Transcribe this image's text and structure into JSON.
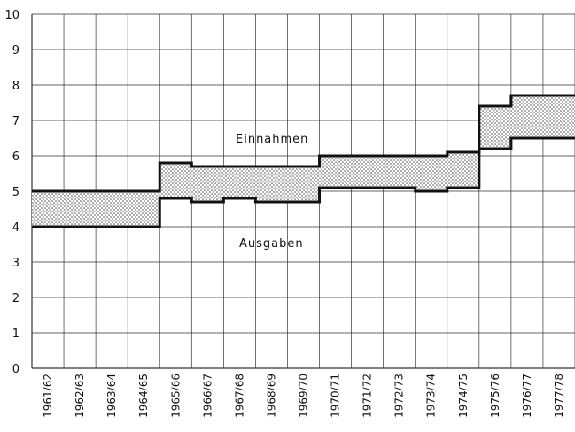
{
  "chart_data": {
    "type": "area",
    "title": "",
    "xlabel": "",
    "ylabel": "",
    "ylim": [
      0,
      10
    ],
    "yticks": [
      "0",
      "1",
      "2",
      "3",
      "4",
      "5",
      "6",
      "7",
      "8",
      "9",
      "10"
    ],
    "categories": [
      "1961/62",
      "1962/63",
      "1963/64",
      "1964/65",
      "1965/66",
      "1966/67",
      "1967/68",
      "1968/69",
      "1969/70",
      "1970/71",
      "1971/72",
      "1972/73",
      "1973/74",
      "1974/75",
      "1975/76",
      "1976/77",
      "1977/78"
    ],
    "series": [
      {
        "name": "Einnahmen",
        "values": [
          5.0,
          5.0,
          5.0,
          5.0,
          5.8,
          5.7,
          5.7,
          5.7,
          5.7,
          6.0,
          6.0,
          6.0,
          6.0,
          6.1,
          7.4,
          7.7,
          7.7
        ]
      },
      {
        "name": "Ausgaben",
        "values": [
          4.0,
          4.0,
          4.0,
          4.0,
          4.8,
          4.7,
          4.8,
          4.7,
          4.7,
          5.1,
          5.1,
          5.1,
          5.0,
          5.1,
          6.2,
          6.5,
          6.5
        ]
      }
    ],
    "grid": true,
    "fill_between": "dotted"
  },
  "annotations": {
    "upper": "Einnahmen",
    "lower": "Ausgaben"
  },
  "colors": {
    "line": "#111111",
    "grid": "#333333",
    "fill_dot": "#444444"
  }
}
